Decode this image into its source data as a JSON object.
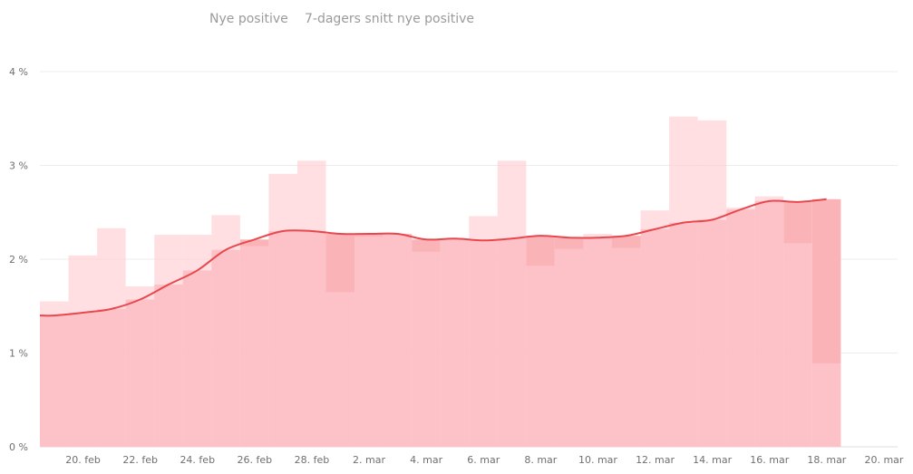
{
  "chart_data": {
    "type": "bar",
    "legend": {
      "position": "top-center",
      "items": [
        {
          "label": "Nye positive"
        },
        {
          "label": "7-dagers snitt nye positive"
        }
      ]
    },
    "y_axis": {
      "min": 0,
      "max": 4,
      "ticks": [
        {
          "value": 0,
          "label": "0 %"
        },
        {
          "value": 1,
          "label": "1 %"
        },
        {
          "value": 2,
          "label": "2 %"
        },
        {
          "value": 3,
          "label": "3 %"
        },
        {
          "value": 4,
          "label": "4 %"
        }
      ]
    },
    "x_axis": {
      "ticks": [
        {
          "label": "20. feb",
          "day": 1
        },
        {
          "label": "22. feb",
          "day": 3
        },
        {
          "label": "24. feb",
          "day": 5
        },
        {
          "label": "26. feb",
          "day": 7
        },
        {
          "label": "28. feb",
          "day": 9
        },
        {
          "label": "2. mar",
          "day": 11
        },
        {
          "label": "4. mar",
          "day": 13
        },
        {
          "label": "6. mar",
          "day": 15
        },
        {
          "label": "8. mar",
          "day": 17
        },
        {
          "label": "10. mar",
          "day": 19
        },
        {
          "label": "12. mar",
          "day": 21
        },
        {
          "label": "14. mar",
          "day": 23
        },
        {
          "label": "16. mar",
          "day": 25
        },
        {
          "label": "18. mar",
          "day": 27
        },
        {
          "label": "20. mar",
          "day": 29
        }
      ]
    },
    "grid": true,
    "series": [
      {
        "name": "Nye positive",
        "type": "bar",
        "color": "#ffccd1",
        "values": [
          1.55,
          2.04,
          2.33,
          1.71,
          2.26,
          2.26,
          2.47,
          2.14,
          2.91,
          3.05,
          1.65,
          2.24,
          2.27,
          2.08,
          2.22,
          2.46,
          3.05,
          1.93,
          2.11,
          2.27,
          2.12,
          2.52,
          3.52,
          3.48,
          2.55,
          2.67,
          2.17,
          0.89
        ]
      },
      {
        "name": "7-dagers snitt nye positive",
        "type": "line",
        "color": "#e8484d",
        "area_color": "#fab4b8",
        "values": [
          1.4,
          1.43,
          1.47,
          1.57,
          1.73,
          1.88,
          2.1,
          2.21,
          2.3,
          2.3,
          2.27,
          2.27,
          2.27,
          2.21,
          2.22,
          2.2,
          2.22,
          2.25,
          2.23,
          2.23,
          2.25,
          2.32,
          2.39,
          2.42,
          2.53,
          2.62,
          2.61,
          2.64
        ]
      }
    ]
  }
}
